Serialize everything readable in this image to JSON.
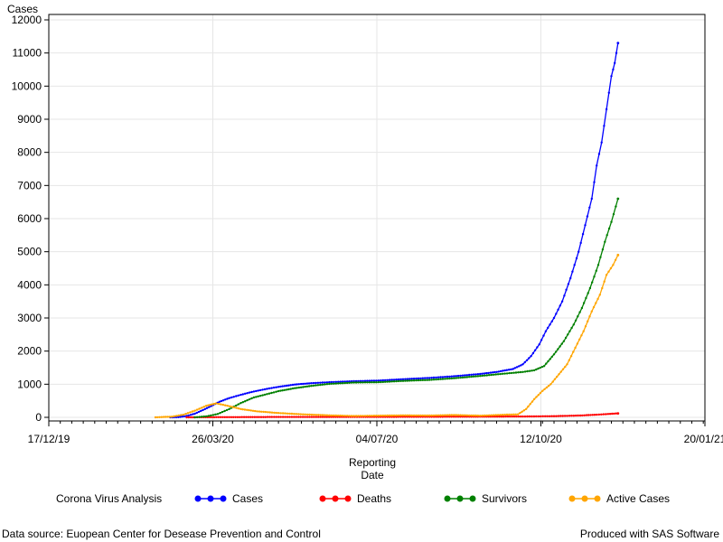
{
  "chart_data": {
    "type": "line",
    "ylabel": "Cases",
    "xlabel_lines": [
      "Reporting",
      "Date"
    ],
    "ylim": [
      0,
      12000
    ],
    "yticks": [
      0,
      1000,
      2000,
      3000,
      4000,
      5000,
      6000,
      7000,
      8000,
      9000,
      10000,
      11000,
      12000
    ],
    "xlim": [
      "2019-12-17",
      "2021-01-20"
    ],
    "xticks": [
      {
        "date": "2019-12-17",
        "label": "17/12/19"
      },
      {
        "date": "2020-03-26",
        "label": "26/03/20"
      },
      {
        "date": "2020-07-04",
        "label": "04/07/20"
      },
      {
        "date": "2020-10-12",
        "label": "12/10/20"
      },
      {
        "date": "2021-01-20",
        "label": "20/01/21"
      }
    ],
    "grid": true,
    "legend_title": "Corona Virus Analysis",
    "series": [
      {
        "name": "Cases",
        "color": "#0000ff",
        "points": [
          [
            "2020-02-29",
            0
          ],
          [
            "2020-03-05",
            5
          ],
          [
            "2020-03-10",
            40
          ],
          [
            "2020-03-15",
            110
          ],
          [
            "2020-03-20",
            220
          ],
          [
            "2020-03-25",
            340
          ],
          [
            "2020-03-30",
            470
          ],
          [
            "2020-04-05",
            580
          ],
          [
            "2020-04-12",
            680
          ],
          [
            "2020-04-20",
            780
          ],
          [
            "2020-04-28",
            860
          ],
          [
            "2020-05-05",
            920
          ],
          [
            "2020-05-15",
            990
          ],
          [
            "2020-05-25",
            1030
          ],
          [
            "2020-06-05",
            1060
          ],
          [
            "2020-06-20",
            1090
          ],
          [
            "2020-07-05",
            1110
          ],
          [
            "2020-07-20",
            1150
          ],
          [
            "2020-08-05",
            1190
          ],
          [
            "2020-08-20",
            1240
          ],
          [
            "2020-09-05",
            1310
          ],
          [
            "2020-09-15",
            1370
          ],
          [
            "2020-09-25",
            1460
          ],
          [
            "2020-10-01",
            1600
          ],
          [
            "2020-10-06",
            1850
          ],
          [
            "2020-10-11",
            2200
          ],
          [
            "2020-10-15",
            2600
          ],
          [
            "2020-10-20",
            3000
          ],
          [
            "2020-10-25",
            3500
          ],
          [
            "2020-10-30",
            4200
          ],
          [
            "2020-11-04",
            5000
          ],
          [
            "2020-11-08",
            5800
          ],
          [
            "2020-11-12",
            6600
          ],
          [
            "2020-11-15",
            7600
          ],
          [
            "2020-11-18",
            8300
          ],
          [
            "2020-11-21",
            9300
          ],
          [
            "2020-11-24",
            10300
          ],
          [
            "2020-11-26",
            10700
          ],
          [
            "2020-11-28",
            11300
          ]
        ]
      },
      {
        "name": "Deaths",
        "color": "#ff0000",
        "points": [
          [
            "2020-03-10",
            0
          ],
          [
            "2020-04-01",
            5
          ],
          [
            "2020-05-01",
            10
          ],
          [
            "2020-06-01",
            12
          ],
          [
            "2020-07-01",
            14
          ],
          [
            "2020-08-01",
            16
          ],
          [
            "2020-09-01",
            20
          ],
          [
            "2020-10-01",
            25
          ],
          [
            "2020-10-20",
            35
          ],
          [
            "2020-11-05",
            55
          ],
          [
            "2020-11-15",
            80
          ],
          [
            "2020-11-22",
            100
          ],
          [
            "2020-11-28",
            120
          ]
        ]
      },
      {
        "name": "Survivors",
        "color": "#008000",
        "points": [
          [
            "2020-03-15",
            0
          ],
          [
            "2020-03-22",
            30
          ],
          [
            "2020-03-29",
            100
          ],
          [
            "2020-04-05",
            250
          ],
          [
            "2020-04-12",
            430
          ],
          [
            "2020-04-20",
            600
          ],
          [
            "2020-04-28",
            700
          ],
          [
            "2020-05-05",
            790
          ],
          [
            "2020-05-15",
            880
          ],
          [
            "2020-05-25",
            950
          ],
          [
            "2020-06-05",
            1010
          ],
          [
            "2020-06-20",
            1050
          ],
          [
            "2020-07-05",
            1060
          ],
          [
            "2020-07-20",
            1100
          ],
          [
            "2020-08-05",
            1130
          ],
          [
            "2020-08-20",
            1180
          ],
          [
            "2020-09-05",
            1250
          ],
          [
            "2020-09-20",
            1320
          ],
          [
            "2020-10-01",
            1370
          ],
          [
            "2020-10-08",
            1420
          ],
          [
            "2020-10-14",
            1550
          ],
          [
            "2020-10-20",
            1900
          ],
          [
            "2020-10-26",
            2300
          ],
          [
            "2020-11-01",
            2800
          ],
          [
            "2020-11-06",
            3300
          ],
          [
            "2020-11-11",
            3900
          ],
          [
            "2020-11-16",
            4600
          ],
          [
            "2020-11-20",
            5300
          ],
          [
            "2020-11-24",
            5900
          ],
          [
            "2020-11-28",
            6600
          ]
        ]
      },
      {
        "name": "Active Cases",
        "color": "#ffa500",
        "points": [
          [
            "2020-02-20",
            0
          ],
          [
            "2020-03-01",
            20
          ],
          [
            "2020-03-08",
            80
          ],
          [
            "2020-03-15",
            200
          ],
          [
            "2020-03-22",
            350
          ],
          [
            "2020-03-28",
            420
          ],
          [
            "2020-04-04",
            350
          ],
          [
            "2020-04-12",
            250
          ],
          [
            "2020-04-22",
            180
          ],
          [
            "2020-05-05",
            130
          ],
          [
            "2020-05-20",
            90
          ],
          [
            "2020-06-05",
            60
          ],
          [
            "2020-06-20",
            40
          ],
          [
            "2020-07-05",
            50
          ],
          [
            "2020-07-20",
            60
          ],
          [
            "2020-08-05",
            55
          ],
          [
            "2020-08-20",
            70
          ],
          [
            "2020-09-05",
            50
          ],
          [
            "2020-09-20",
            80
          ],
          [
            "2020-09-28",
            90
          ],
          [
            "2020-10-03",
            250
          ],
          [
            "2020-10-08",
            550
          ],
          [
            "2020-10-13",
            800
          ],
          [
            "2020-10-18",
            1000
          ],
          [
            "2020-10-23",
            1300
          ],
          [
            "2020-10-28",
            1600
          ],
          [
            "2020-11-02",
            2100
          ],
          [
            "2020-11-07",
            2600
          ],
          [
            "2020-11-12",
            3200
          ],
          [
            "2020-11-17",
            3700
          ],
          [
            "2020-11-21",
            4300
          ],
          [
            "2020-11-25",
            4600
          ],
          [
            "2020-11-28",
            4900
          ]
        ]
      }
    ]
  },
  "footer": {
    "source": "Data source: Euopean Center for Desease Prevention and Control",
    "producer": "Produced with SAS Software"
  }
}
